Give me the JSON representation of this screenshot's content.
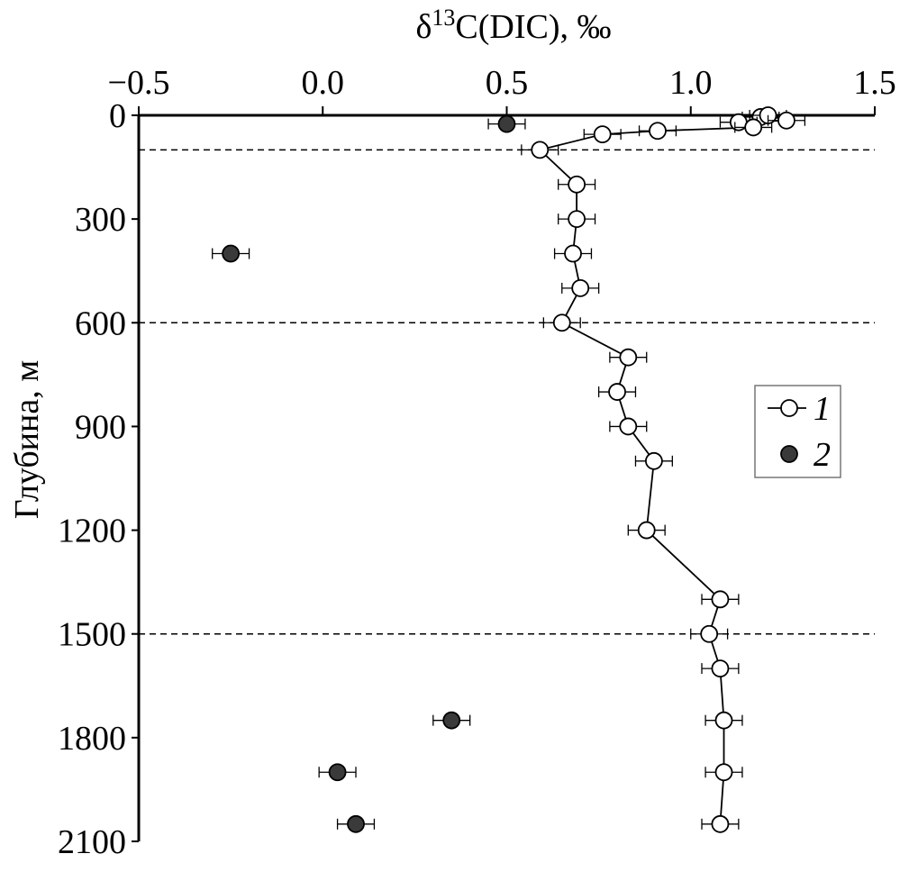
{
  "chart_data": {
    "type": "scatter",
    "xlabel": "δ13C(DIC), ‰",
    "ylabel": "Глубина, м",
    "xlim": [
      -0.5,
      1.5
    ],
    "ylim": [
      0,
      2100
    ],
    "x_ticks": [
      "−0.5",
      "0.0",
      "0.5",
      "1.0",
      "1.5"
    ],
    "y_ticks": [
      "0",
      "300",
      "600",
      "900",
      "1200",
      "1500",
      "1800",
      "2100"
    ],
    "x_axis_position": "top",
    "y_axis_inverted": true,
    "reference_lines_depth": [
      100,
      600,
      1500
    ],
    "legend_position": "right",
    "series": [
      {
        "name": "1",
        "marker": "open-circle",
        "connected": true,
        "error_x": 0.05,
        "points": [
          {
            "x": 1.19,
            "y": 5
          },
          {
            "x": 1.21,
            "y": 0
          },
          {
            "x": 1.26,
            "y": 15
          },
          {
            "x": 1.13,
            "y": 20
          },
          {
            "x": 1.17,
            "y": 35
          },
          {
            "x": 0.91,
            "y": 45
          },
          {
            "x": 0.76,
            "y": 55
          },
          {
            "x": 0.59,
            "y": 100
          },
          {
            "x": 0.69,
            "y": 200
          },
          {
            "x": 0.69,
            "y": 300
          },
          {
            "x": 0.68,
            "y": 400
          },
          {
            "x": 0.7,
            "y": 500
          },
          {
            "x": 0.65,
            "y": 600
          },
          {
            "x": 0.83,
            "y": 700
          },
          {
            "x": 0.8,
            "y": 800
          },
          {
            "x": 0.83,
            "y": 900
          },
          {
            "x": 0.9,
            "y": 1000
          },
          {
            "x": 0.88,
            "y": 1200
          },
          {
            "x": 1.08,
            "y": 1400
          },
          {
            "x": 1.05,
            "y": 1500
          },
          {
            "x": 1.08,
            "y": 1600
          },
          {
            "x": 1.09,
            "y": 1750
          },
          {
            "x": 1.09,
            "y": 1900
          },
          {
            "x": 1.08,
            "y": 2050
          }
        ]
      },
      {
        "name": "2",
        "marker": "filled-circle",
        "connected": false,
        "error_x": 0.05,
        "points": [
          {
            "x": 0.5,
            "y": 25
          },
          {
            "x": -0.25,
            "y": 400
          },
          {
            "x": 0.35,
            "y": 1750
          },
          {
            "x": 0.04,
            "y": 1900
          },
          {
            "x": 0.09,
            "y": 2050
          }
        ]
      }
    ]
  }
}
